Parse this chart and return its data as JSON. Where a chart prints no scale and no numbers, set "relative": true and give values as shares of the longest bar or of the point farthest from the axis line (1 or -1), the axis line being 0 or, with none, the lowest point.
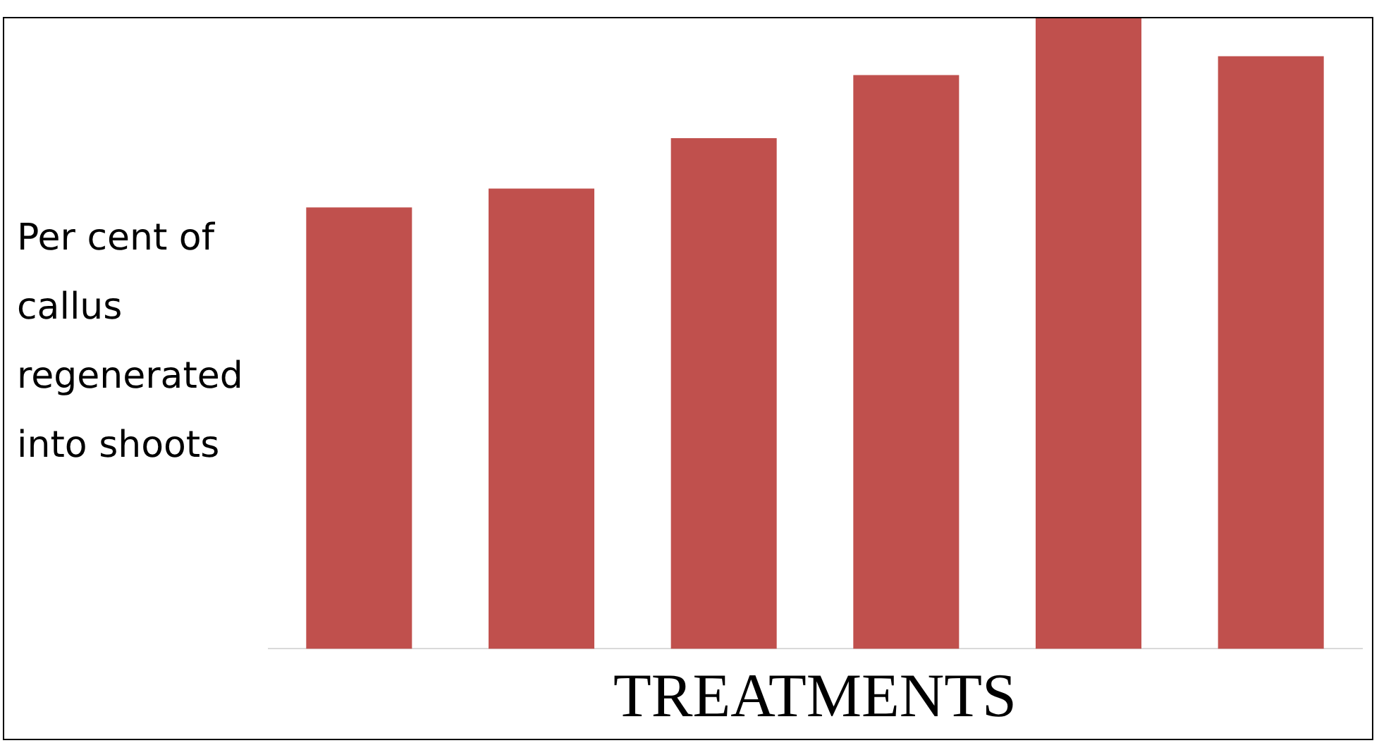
{
  "chart_data": {
    "type": "bar",
    "relative": true,
    "xlabel": "TREATMENTS",
    "ylabel": "Per cent of callus regenerated into shoots",
    "categories": [
      null,
      null,
      null,
      null,
      null,
      null
    ],
    "values": [
      0.7,
      0.73,
      0.81,
      0.91,
      1,
      0.94
    ],
    "color": "#c0504d",
    "grid": false,
    "legend": false
  }
}
